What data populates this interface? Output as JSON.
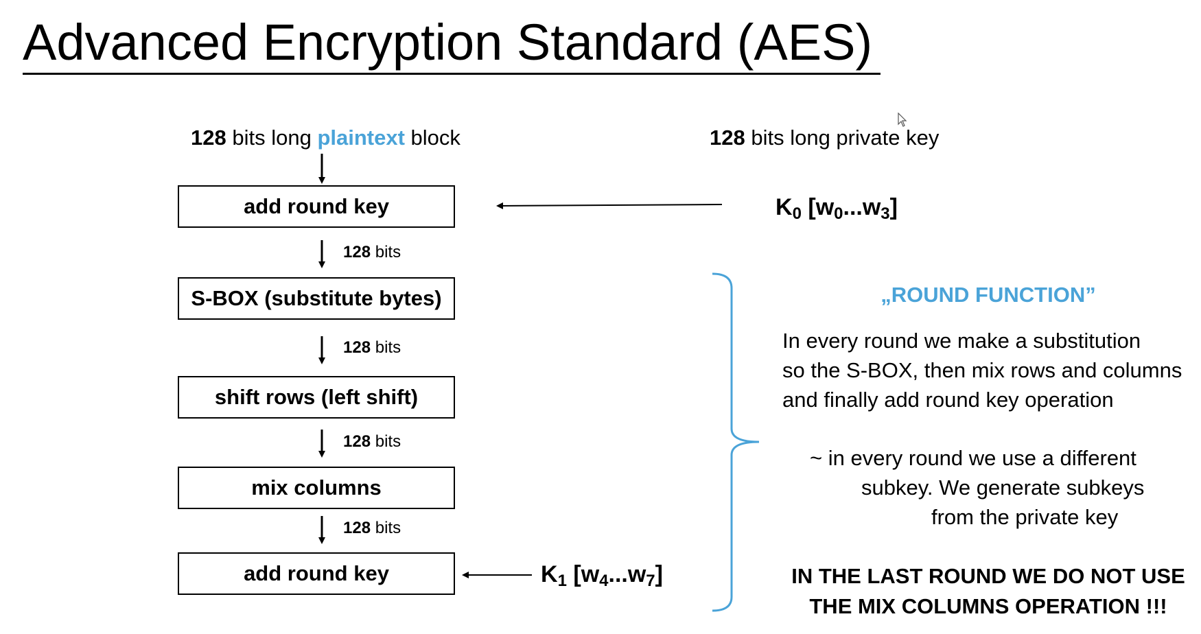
{
  "title": "Advanced Encryption Standard (AES)",
  "colors": {
    "accent": "#4aa3d8",
    "text": "#000000"
  },
  "plaintext_label": {
    "bits": "128",
    "pre": " bits long ",
    "highlight": "plaintext",
    "post": " block"
  },
  "key_label": {
    "bits": "128",
    "rest": " bits long private key"
  },
  "boxes": [
    {
      "label": "add round key"
    },
    {
      "label": "S-BOX (substitute bytes)"
    },
    {
      "label": "shift rows (left shift)"
    },
    {
      "label": "mix columns"
    },
    {
      "label": "add round key"
    }
  ],
  "bits_labels": [
    {
      "num": "128",
      "unit": " bits"
    },
    {
      "num": "128",
      "unit": " bits"
    },
    {
      "num": "128",
      "unit": " bits"
    },
    {
      "num": "128",
      "unit": " bits"
    }
  ],
  "keys": {
    "k0": {
      "k": "K",
      "ks": "0",
      "open": " [w",
      "s1": "0",
      "mid": "...w",
      "s2": "3",
      "close": "]"
    },
    "k1": {
      "k": "K",
      "ks": "1",
      "open": " [w",
      "s1": "4",
      "mid": "...w",
      "s2": "7",
      "close": "]"
    }
  },
  "round_function": {
    "title": "„ROUND FUNCTION”",
    "paragraph1": [
      "In every round we make a substitution",
      "so the S-BOX, then mix rows and columns",
      "and finally add round key operation"
    ],
    "paragraph2": [
      "~ in every round we use a different",
      "subkey. We generate subkeys",
      "from the private key"
    ],
    "last_round": [
      "IN THE LAST ROUND WE DO NOT USE",
      "THE MIX COLUMNS OPERATION !!!"
    ]
  },
  "icons": {
    "cursor": "mouse-pointer-icon"
  }
}
